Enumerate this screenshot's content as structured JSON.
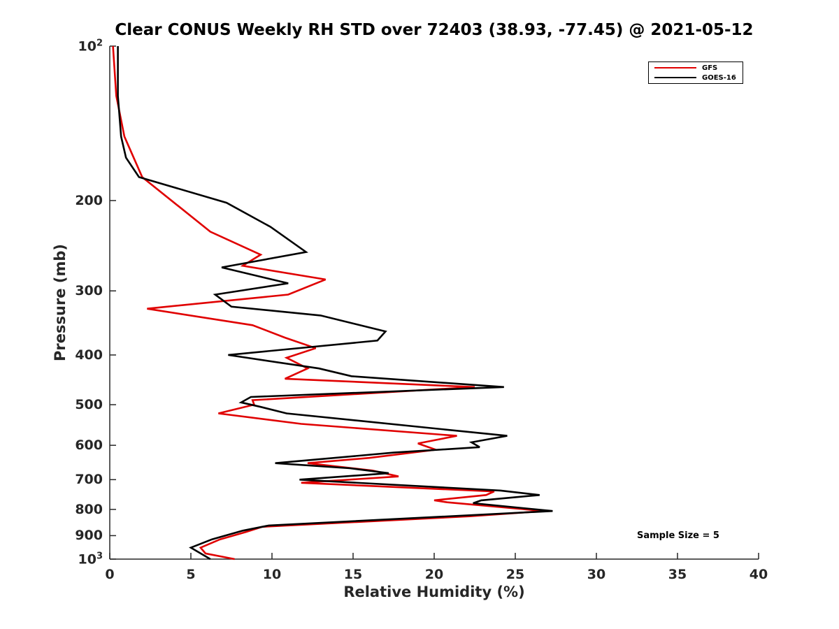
{
  "chart_data": {
    "type": "line",
    "title": "Clear CONUS Weekly RH STD over 72403 (38.93, -77.45) @ 2021-05-12",
    "xlabel": "Relative Humidity (%)",
    "ylabel": "Pressure (mb)",
    "xlim": [
      0,
      40
    ],
    "ylim": [
      100,
      1000
    ],
    "yscale": "log",
    "y_reversed": true,
    "grid": false,
    "legend_position": "top-right",
    "x_ticks": [
      "0",
      "5",
      "10",
      "15",
      "20",
      "25",
      "30",
      "35",
      "40"
    ],
    "y_ticks": [
      {
        "value": 100,
        "label": "10",
        "sup": "2"
      },
      {
        "value": 200,
        "label": "200"
      },
      {
        "value": 300,
        "label": "300"
      },
      {
        "value": 400,
        "label": "400"
      },
      {
        "value": 500,
        "label": "500"
      },
      {
        "value": 600,
        "label": "600"
      },
      {
        "value": 700,
        "label": "700"
      },
      {
        "value": 800,
        "label": "800"
      },
      {
        "value": 900,
        "label": "900"
      },
      {
        "value": 1000,
        "label": "10",
        "sup": "3"
      }
    ],
    "annotation": "Sample Size = 5",
    "series": [
      {
        "name": "GFS",
        "color": "#e00000",
        "points": [
          [
            0.2,
            100
          ],
          [
            0.4,
            125
          ],
          [
            0.9,
            150
          ],
          [
            2.0,
            180
          ],
          [
            6.2,
            230
          ],
          [
            9.3,
            255
          ],
          [
            8.2,
            268
          ],
          [
            13.3,
            285
          ],
          [
            11.0,
            305
          ],
          [
            2.3,
            325
          ],
          [
            8.8,
            350
          ],
          [
            10.8,
            370
          ],
          [
            12.7,
            388
          ],
          [
            10.9,
            405
          ],
          [
            12.2,
            425
          ],
          [
            10.8,
            445
          ],
          [
            22.5,
            462
          ],
          [
            8.8,
            490
          ],
          [
            8.9,
            500
          ],
          [
            6.7,
            520
          ],
          [
            11.8,
            545
          ],
          [
            21.4,
            575
          ],
          [
            19.0,
            595
          ],
          [
            20.1,
            612
          ],
          [
            16.0,
            635
          ],
          [
            12.2,
            650
          ],
          [
            16.2,
            672
          ],
          [
            17.8,
            690
          ],
          [
            11.8,
            710
          ],
          [
            23.7,
            738
          ],
          [
            23.2,
            750
          ],
          [
            20.0,
            768
          ],
          [
            20.8,
            775
          ],
          [
            26.8,
            806
          ],
          [
            22.2,
            825
          ],
          [
            9.4,
            865
          ],
          [
            8.4,
            885
          ],
          [
            6.8,
            915
          ],
          [
            5.6,
            950
          ],
          [
            5.9,
            975
          ],
          [
            7.7,
            1000
          ]
        ]
      },
      {
        "name": "GOES-16",
        "color": "#000000",
        "points": [
          [
            0.5,
            100
          ],
          [
            0.5,
            125
          ],
          [
            0.7,
            150
          ],
          [
            1.0,
            165
          ],
          [
            1.8,
            180
          ],
          [
            7.2,
            202
          ],
          [
            9.9,
            225
          ],
          [
            12.1,
            252
          ],
          [
            6.9,
            270
          ],
          [
            11.0,
            290
          ],
          [
            6.5,
            305
          ],
          [
            7.5,
            322
          ],
          [
            13.0,
            335
          ],
          [
            17.0,
            360
          ],
          [
            16.5,
            375
          ],
          [
            7.3,
            400
          ],
          [
            12.9,
            425
          ],
          [
            14.9,
            440
          ],
          [
            24.3,
            462
          ],
          [
            8.7,
            483
          ],
          [
            8.1,
            495
          ],
          [
            9.3,
            505
          ],
          [
            10.9,
            520
          ],
          [
            24.5,
            575
          ],
          [
            22.3,
            592
          ],
          [
            22.8,
            605
          ],
          [
            17.5,
            620
          ],
          [
            10.2,
            650
          ],
          [
            14.8,
            665
          ],
          [
            17.2,
            680
          ],
          [
            11.7,
            700
          ],
          [
            24.1,
            735
          ],
          [
            26.5,
            750
          ],
          [
            22.9,
            768
          ],
          [
            22.4,
            778
          ],
          [
            27.3,
            806
          ],
          [
            9.8,
            860
          ],
          [
            8.2,
            880
          ],
          [
            6.3,
            915
          ],
          [
            5.0,
            950
          ],
          [
            6.2,
            1000
          ]
        ]
      }
    ]
  }
}
